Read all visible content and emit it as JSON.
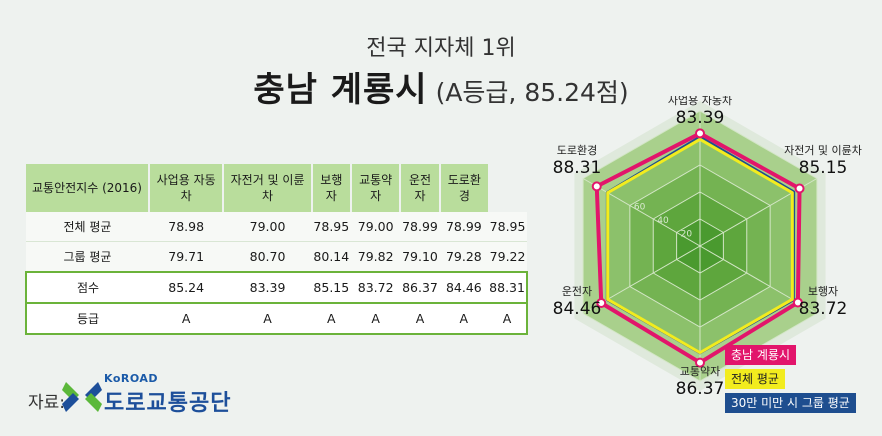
{
  "header": {
    "subtitle": "전국 지자체 1위",
    "title": "충남 계룡시",
    "title_note": "(A등급, 85.24점)"
  },
  "table": {
    "columns": [
      "교통안전지수 (2016)",
      "사업용 자동차",
      "자전거 및 이륜차",
      "보행자",
      "교통약자",
      "운전자",
      "도로환경"
    ],
    "rows": [
      {
        "label": "전체 평균",
        "values": [
          "78.98",
          "79.00",
          "78.95",
          "79.00",
          "78.99",
          "78.99",
          "78.95"
        ]
      },
      {
        "label": "그룹 평균",
        "values": [
          "79.71",
          "80.70",
          "80.14",
          "79.82",
          "79.10",
          "79.28",
          "79.22"
        ]
      },
      {
        "label": "점수",
        "values": [
          "85.24",
          "83.39",
          "85.15",
          "83.72",
          "86.37",
          "84.46",
          "88.31"
        ]
      },
      {
        "label": "등급",
        "values": [
          "A",
          "A",
          "A",
          "A",
          "A",
          "A",
          "A"
        ]
      }
    ]
  },
  "source": {
    "label": "자료:",
    "logo_en": "KoROAD",
    "logo_kr": "도로교통공단"
  },
  "chart_data": {
    "type": "radar",
    "axes": [
      "사업용 자동차",
      "자전거 및 이륜차",
      "보행자",
      "교통약자",
      "운전자",
      "도로환경"
    ],
    "range": [
      0,
      100
    ],
    "grid_ticks": [
      "20",
      "40",
      "60"
    ],
    "value_labels": [
      "83.39",
      "85.15",
      "83.72",
      "86.37",
      "84.46",
      "88.31"
    ],
    "series": [
      {
        "name": "충남 계룡시",
        "color": "#e2156b",
        "values": [
          83.39,
          85.15,
          83.72,
          86.37,
          84.46,
          88.31
        ]
      },
      {
        "name": "전체 평균",
        "color": "#f2ec1e",
        "values": [
          79.0,
          78.95,
          79.0,
          78.99,
          78.99,
          78.95
        ]
      },
      {
        "name": "30만 미만 시 그룹  평균",
        "color": "#1e4e8f",
        "values": [
          80.7,
          80.14,
          79.82,
          79.1,
          79.28,
          79.22
        ]
      }
    ],
    "legend": "bottom-right"
  }
}
